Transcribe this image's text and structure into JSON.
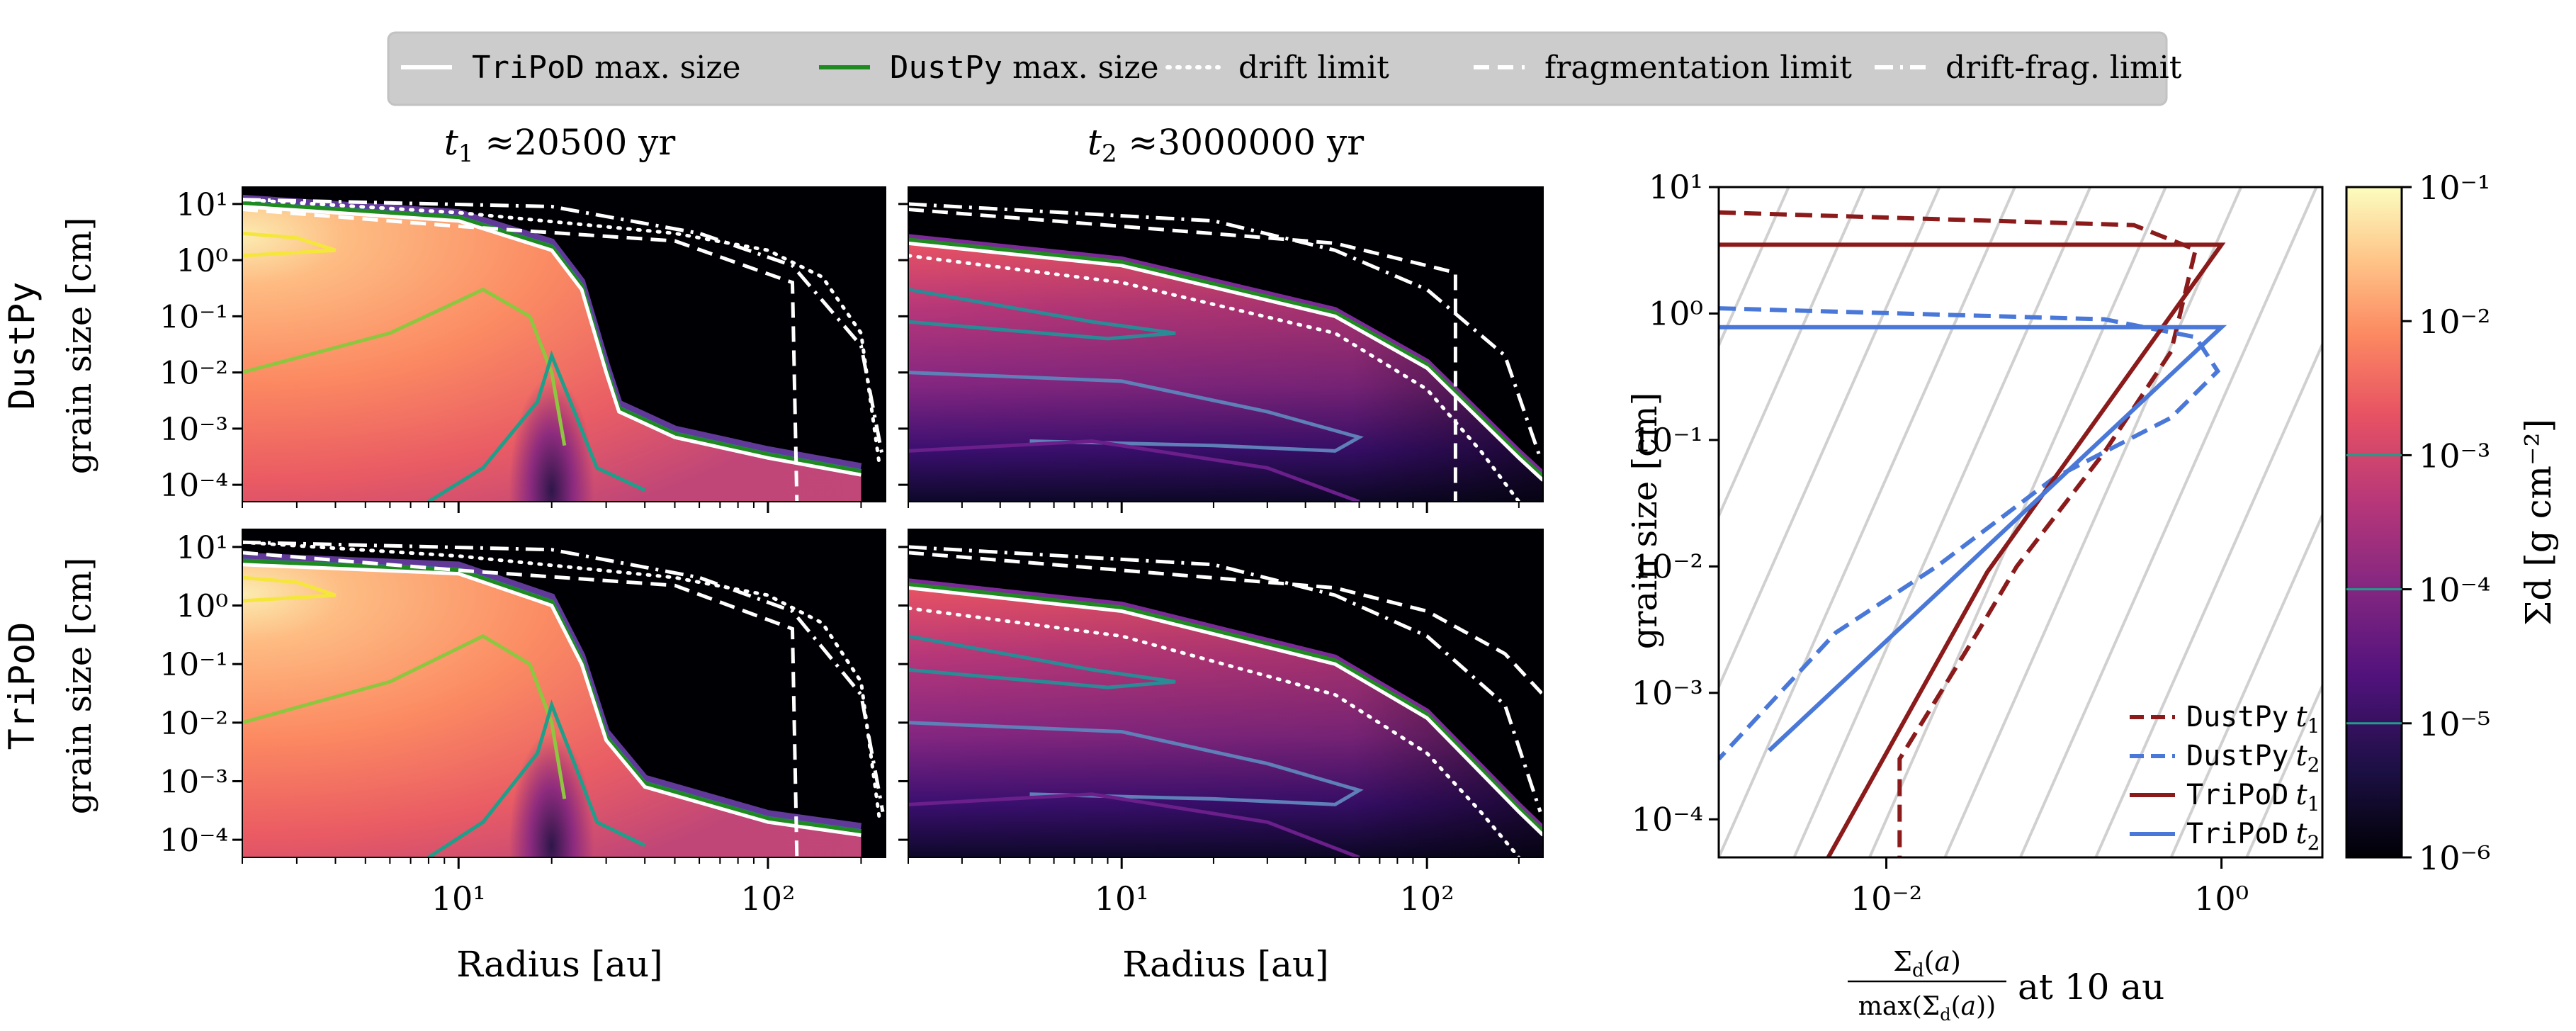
{
  "legend": {
    "entries": [
      {
        "mono": "TriPoD",
        "text": " max. size",
        "style": "solid",
        "color": "#ffffff"
      },
      {
        "mono": "DustPy",
        "text": " max. size",
        "style": "solid",
        "color": "#1f8a1f"
      },
      {
        "mono": "",
        "text": "drift limit",
        "style": "dotted",
        "color": "#ffffff"
      },
      {
        "mono": "",
        "text": "fragmentation limit",
        "style": "dashed",
        "color": "#ffffff"
      },
      {
        "mono": "",
        "text": "drift-frag. limit",
        "style": "dashdot",
        "color": "#ffffff"
      }
    ],
    "placement": "top-center"
  },
  "columns": [
    {
      "title_var": "t",
      "title_sub": "1",
      "title_rest": " ≈20500 yr"
    },
    {
      "title_var": "t",
      "title_sub": "2",
      "title_rest": " ≈3000000 yr"
    }
  ],
  "rows": [
    {
      "label": "DustPy",
      "ylabel": "grain size [cm]"
    },
    {
      "label": "TriPoD",
      "ylabel": "grain size [cm]"
    }
  ],
  "xlabel": "Radius [au]",
  "right_panel": {
    "ylabel": "grain size [cm]",
    "xlabel_rest": " at 10 au",
    "legend": [
      {
        "name": "DustPy",
        "sub": "1",
        "color": "#8b1a1a",
        "style": "dashed"
      },
      {
        "name": "DustPy",
        "sub": "2",
        "color": "#4a78d8",
        "style": "dashed"
      },
      {
        "name": "TriPoD",
        "sub": "1",
        "color": "#8b1a1a",
        "style": "solid"
      },
      {
        "name": "TriPoD",
        "sub": "2",
        "color": "#4a78d8",
        "style": "solid"
      }
    ]
  },
  "colorbar": {
    "label": "Σd [g cm⁻²]",
    "ticks": [
      "10⁻¹",
      "10⁻²",
      "10⁻³",
      "10⁻⁴",
      "10⁻⁵",
      "10⁻⁶"
    ],
    "colormap": "magma"
  },
  "chart_data": [
    {
      "type": "heatmap",
      "panel": "DustPy t1",
      "xscale": "log",
      "yscale": "log",
      "xlim": [
        2,
        240
      ],
      "ylim": [
        5e-05,
        20
      ],
      "xticks": [
        "10¹",
        "10²"
      ],
      "yticks": [
        "10¹",
        "10⁰",
        "10⁻¹",
        "10⁻²",
        "10⁻³",
        "10⁻⁴"
      ],
      "max_size": [
        [
          2,
          9
        ],
        [
          10,
          5
        ],
        [
          20,
          1.5
        ],
        [
          25,
          0.3
        ],
        [
          30,
          0.01
        ],
        [
          33,
          0.002
        ],
        [
          50,
          0.0007
        ],
        [
          100,
          0.0003
        ],
        [
          200,
          0.00015
        ]
      ],
      "drift_limit": [
        [
          2,
          12
        ],
        [
          10,
          7
        ],
        [
          50,
          3
        ],
        [
          100,
          1.5
        ],
        [
          150,
          0.5
        ],
        [
          200,
          0.05
        ],
        [
          230,
          0.0002
        ]
      ],
      "frag_limit": [
        [
          2,
          8
        ],
        [
          10,
          4
        ],
        [
          50,
          2.2
        ],
        [
          120,
          0.4
        ],
        [
          124,
          5e-05
        ]
      ],
      "drift_frag_limit": [
        [
          2,
          12
        ],
        [
          20,
          9
        ],
        [
          60,
          3
        ],
        [
          120,
          0.8
        ],
        [
          200,
          0.03
        ],
        [
          235,
          0.0003
        ]
      ]
    },
    {
      "type": "heatmap",
      "panel": "DustPy t2",
      "xscale": "log",
      "yscale": "log",
      "xlim": [
        2,
        240
      ],
      "ylim": [
        5e-05,
        20
      ],
      "xticks": [
        "10¹",
        "10²"
      ],
      "yticks": [
        "10¹",
        "10⁰",
        "10⁻¹",
        "10⁻²",
        "10⁻³",
        "10⁻⁴"
      ],
      "max_size": [
        [
          2,
          2
        ],
        [
          10,
          0.8
        ],
        [
          50,
          0.1
        ],
        [
          100,
          0.012
        ],
        [
          200,
          0.0003
        ],
        [
          240,
          0.00012
        ]
      ],
      "drift_limit": [
        [
          2,
          1.2
        ],
        [
          10,
          0.4
        ],
        [
          50,
          0.05
        ],
        [
          100,
          0.005
        ],
        [
          150,
          0.0004
        ],
        [
          200,
          5e-05
        ]
      ],
      "frag_limit": [
        [
          2,
          8
        ],
        [
          10,
          4
        ],
        [
          50,
          2
        ],
        [
          124,
          0.6
        ],
        [
          124,
          5e-05
        ]
      ],
      "drift_frag_limit": [
        [
          2,
          10
        ],
        [
          20,
          5
        ],
        [
          50,
          1.5
        ],
        [
          100,
          0.3
        ],
        [
          180,
          0.02
        ],
        [
          235,
          0.0003
        ]
      ]
    },
    {
      "type": "heatmap",
      "panel": "TriPoD t1",
      "xscale": "log",
      "yscale": "log",
      "xlim": [
        2,
        240
      ],
      "ylim": [
        5e-05,
        20
      ],
      "xticks": [
        "10¹",
        "10²"
      ],
      "yticks": [
        "10¹",
        "10⁰",
        "10⁻¹",
        "10⁻²",
        "10⁻³",
        "10⁻⁴"
      ],
      "max_size": [
        [
          2,
          5
        ],
        [
          10,
          3.5
        ],
        [
          20,
          1
        ],
        [
          25,
          0.1
        ],
        [
          30,
          0.005
        ],
        [
          40,
          0.0008
        ],
        [
          100,
          0.0002
        ],
        [
          200,
          0.00012
        ]
      ],
      "drift_limit": [
        [
          2,
          12
        ],
        [
          10,
          7
        ],
        [
          50,
          3
        ],
        [
          100,
          1.5
        ],
        [
          150,
          0.5
        ],
        [
          200,
          0.05
        ],
        [
          230,
          0.0002
        ]
      ],
      "frag_limit": [
        [
          2,
          8
        ],
        [
          10,
          4
        ],
        [
          50,
          2.2
        ],
        [
          120,
          0.4
        ],
        [
          124,
          5e-05
        ]
      ],
      "drift_frag_limit": [
        [
          2,
          12
        ],
        [
          20,
          9
        ],
        [
          60,
          3
        ],
        [
          120,
          0.8
        ],
        [
          200,
          0.03
        ],
        [
          235,
          0.0003
        ]
      ]
    },
    {
      "type": "heatmap",
      "panel": "TriPoD t2",
      "xscale": "log",
      "yscale": "log",
      "xlim": [
        2,
        240
      ],
      "ylim": [
        5e-05,
        20
      ],
      "xticks": [
        "10¹",
        "10²"
      ],
      "yticks": [
        "10¹",
        "10⁰",
        "10⁻¹",
        "10⁻²",
        "10⁻³",
        "10⁻⁴"
      ],
      "max_size": [
        [
          2,
          2
        ],
        [
          10,
          0.8
        ],
        [
          50,
          0.1
        ],
        [
          100,
          0.012
        ],
        [
          200,
          0.0003
        ],
        [
          240,
          0.00012
        ]
      ],
      "drift_limit": [
        [
          2,
          0.9
        ],
        [
          10,
          0.3
        ],
        [
          50,
          0.03
        ],
        [
          100,
          0.003
        ],
        [
          150,
          0.0003
        ],
        [
          200,
          5e-05
        ]
      ],
      "frag_limit": [
        [
          2,
          8
        ],
        [
          10,
          4
        ],
        [
          50,
          2
        ],
        [
          100,
          0.8
        ],
        [
          180,
          0.15
        ],
        [
          240,
          0.03
        ]
      ],
      "drift_frag_limit": [
        [
          2,
          10
        ],
        [
          20,
          5
        ],
        [
          50,
          1.5
        ],
        [
          100,
          0.3
        ],
        [
          180,
          0.02
        ],
        [
          235,
          0.0003
        ]
      ]
    },
    {
      "type": "line",
      "panel": "size distribution at 10 au",
      "xscale": "log",
      "yscale": "log",
      "xlim": [
        0.001,
        4
      ],
      "ylim": [
        5e-05,
        10
      ],
      "xticks": [
        "10⁻²",
        "10⁰"
      ],
      "yticks": [
        "10¹",
        "10⁰",
        "10⁻¹",
        "10⁻²",
        "10⁻³",
        "10⁻⁴"
      ],
      "series": [
        {
          "name": "DustPy t1",
          "points": [
            [
              0.001,
              6.3
            ],
            [
              0.3,
              5
            ],
            [
              0.7,
              3.2
            ],
            [
              0.5,
              0.5
            ],
            [
              0.2,
              0.08
            ],
            [
              0.06,
              0.01
            ],
            [
              0.035,
              0.003
            ],
            [
              0.012,
              0.0003
            ],
            [
              0.012,
              5e-05
            ]
          ]
        },
        {
          "name": "DustPy t2",
          "points": [
            [
              0.001,
              1.1
            ],
            [
              0.2,
              0.9
            ],
            [
              0.7,
              0.65
            ],
            [
              0.95,
              0.35
            ],
            [
              0.5,
              0.15
            ],
            [
              0.1,
              0.05
            ],
            [
              0.02,
              0.01
            ],
            [
              0.005,
              0.003
            ],
            [
              0.001,
              0.0003
            ]
          ]
        },
        {
          "name": "TriPoD t1",
          "points": [
            [
              0.001,
              3.5
            ],
            [
              1.0,
              3.5
            ],
            [
              0.04,
              0.009
            ],
            [
              0.0045,
              5e-05
            ]
          ]
        },
        {
          "name": "TriPoD t2",
          "points": [
            [
              0.001,
              0.78
            ],
            [
              1.0,
              0.78
            ],
            [
              0.002,
              0.00035
            ]
          ]
        }
      ]
    }
  ]
}
